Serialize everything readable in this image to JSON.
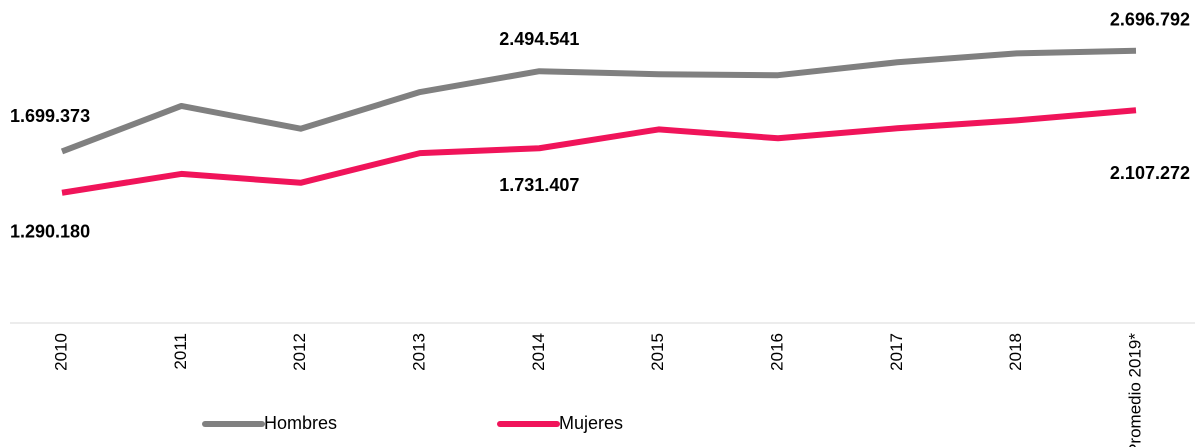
{
  "chart_data": {
    "type": "line",
    "categories": [
      "2010",
      "2011",
      "2012",
      "2013",
      "2014",
      "2015",
      "2016",
      "2017",
      "2018",
      "Promedio 2019*"
    ],
    "ylim": [
      0,
      3200000
    ],
    "series": [
      {
        "name": "Hombres",
        "color": "#808080",
        "values": [
          1699373,
          2150000,
          1925000,
          2288000,
          2494541,
          2465000,
          2455000,
          2583000,
          2671000,
          2696792
        ],
        "value_labels": [
          "1.699.373",
          null,
          null,
          null,
          "2.494.541",
          null,
          null,
          null,
          null,
          "2.696.792"
        ]
      },
      {
        "name": "Mujeres",
        "color": "#f0145a",
        "values": [
          1290180,
          1477000,
          1389000,
          1683000,
          1731407,
          1918000,
          1830000,
          1929000,
          2007000,
          2107272
        ],
        "value_labels": [
          "1.290.180",
          null,
          null,
          null,
          "1.731.407",
          null,
          null,
          null,
          null,
          "2.107.272"
        ]
      }
    ]
  }
}
